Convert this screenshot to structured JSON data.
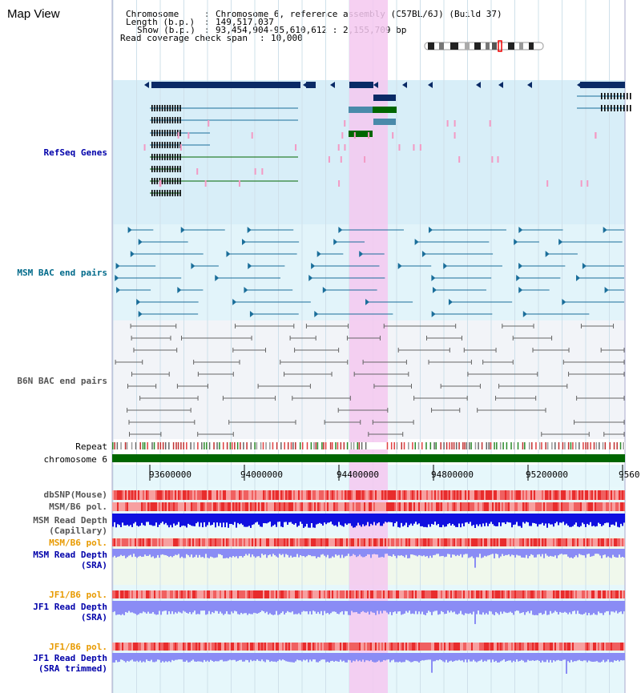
{
  "page": {
    "title": "Map View"
  },
  "header": {
    "chromosome_label": "Chromosome",
    "chromosome_value": "Chromosome 6, reference assembly (C57BL/6J) (Build 37)",
    "length_label": "Length (b.p.)",
    "length_value": "149,517,037",
    "show_label": "Show (b.p.)",
    "show_value": "93,454,904-95,610,612 : 2,155,709 bp",
    "coverage_label": "Read coverage check span",
    "coverage_value": "10,000"
  },
  "tracks": {
    "refseq": "RefSeq Genes",
    "msm_bac": "MSM BAC end pairs",
    "b6n_bac": "B6N BAC end pairs",
    "repeat": "Repeat",
    "chromosome": "chromosome 6",
    "dbsnp": "dbSNP(Mouse)",
    "msm_b6_pol_1": "MSM/B6 pol.",
    "msm_depth_cap": "MSM Read Depth\n(Capillary)",
    "msm_b6_pol_2": "MSM/B6 pol.",
    "msm_depth_sra": "MSM Read Depth\n(SRA)",
    "jf1_b6_pol_1": "JF1/B6 pol.",
    "jf1_depth_sra": "JF1 Read Depth\n(SRA)",
    "jf1_b6_pol_2": "JF1/B6 pol.",
    "jf1_depth_trim": "JF1 Read Depth\n(SRA trimmed)"
  },
  "axis": {
    "ticks": [
      "93600000",
      "94000000",
      "94400000",
      "94800000",
      "95200000",
      "9560"
    ]
  },
  "colors": {
    "highlight": "#f5c8f0",
    "gene_dark": "#0a2a66",
    "gene_green": "#006600",
    "msm_teal": "#1a6e9a",
    "b6n_gray": "#666666",
    "chromosome": "#006600",
    "depth_dark": "#1010e0",
    "depth_light": "#8a8cf5",
    "pol_red": "#e84040"
  }
}
